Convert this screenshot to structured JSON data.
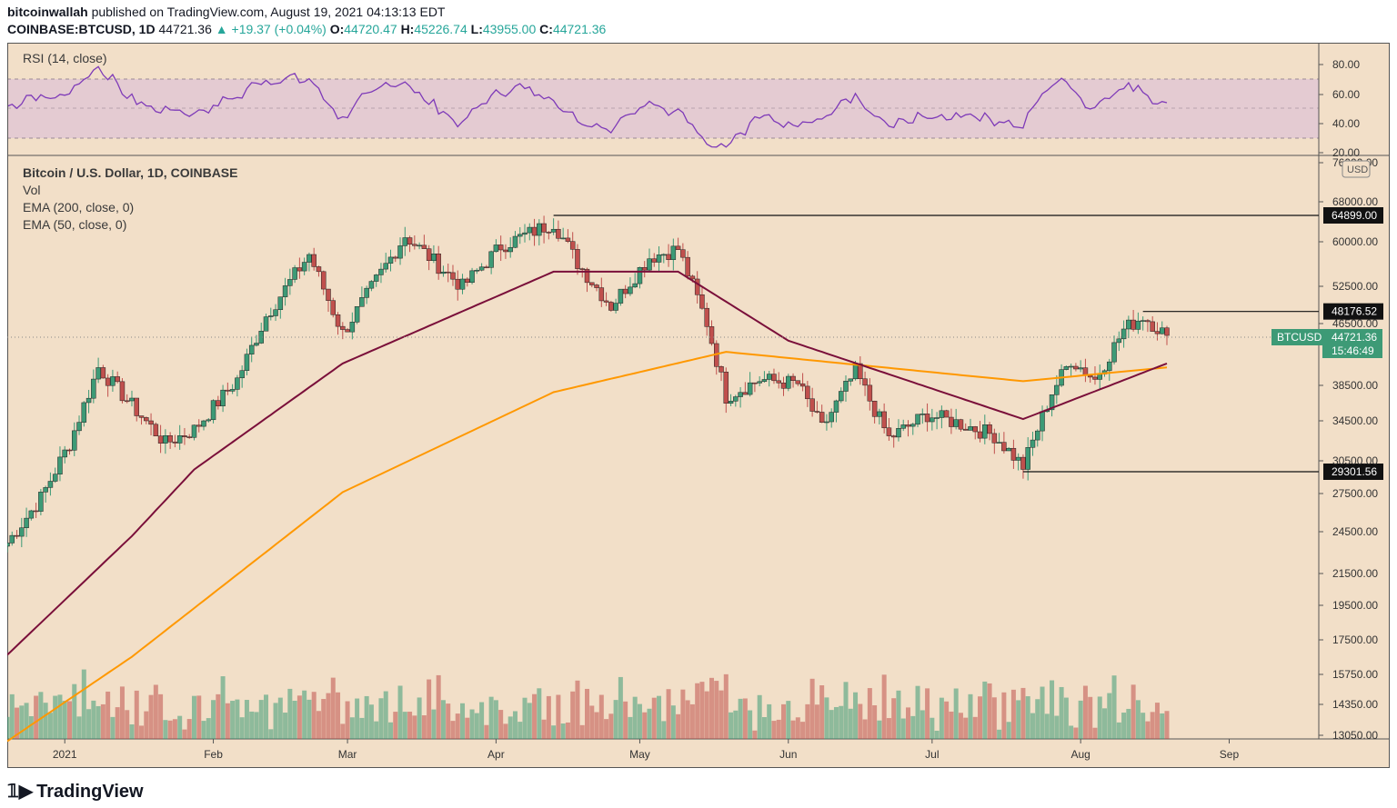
{
  "header": {
    "publisher": "bitcoinwallah",
    "published_text": "published on TradingView.com, August 19, 2021 04:13:13 EDT",
    "symbol": "COINBASE:BTCUSD, 1D",
    "last": "44721.36",
    "change": "▲ +19.37 (+0.04%)",
    "o_label": "O:",
    "o": "44720.47",
    "h_label": "H:",
    "h": "45226.74",
    "l_label": "L:",
    "l": "43955.00",
    "c_label": "C:",
    "c": "44721.36"
  },
  "rsi_pane": {
    "label": "RSI (14, close)",
    "ticks": [
      "80.00",
      "60.00",
      "40.00",
      "20.00"
    ]
  },
  "main_pane": {
    "title": "Bitcoin / U.S. Dollar, 1D, COINBASE",
    "legend": [
      "Vol",
      "EMA (200, close, 0)",
      "EMA (50, close, 0)"
    ],
    "currency_badge": "USD",
    "price_ticks": [
      "76000.00",
      "68000.00",
      "60000.00",
      "52500.00",
      "46500.00",
      "38500.00",
      "34500.00",
      "30500.00",
      "27500.00",
      "24500.00",
      "21500.00",
      "19500.00",
      "17500.00",
      "15750.00",
      "14350.00",
      "13050.00"
    ],
    "level_labels": [
      "64899.00",
      "48176.52",
      "29301.56"
    ],
    "last_price_label": "BTCUSD",
    "last_price": "44721.36",
    "countdown": "15:46:49"
  },
  "time_axis": [
    "2021",
    "Feb",
    "Mar",
    "Apr",
    "May",
    "Jun",
    "Jul",
    "Aug",
    "Sep"
  ],
  "colors": {
    "background": "#f2dfc8",
    "up": "#3d9a76",
    "down": "#c0504d",
    "ema50": "#7a0f3a",
    "ema200": "#ff9800",
    "rsi": "#7e3ab8",
    "rsi_band": "#e2c8d4"
  },
  "footer": {
    "brand": "TradingView"
  },
  "chart_data": {
    "type": "candlestick",
    "title": "Bitcoin / U.S. Dollar, 1D, COINBASE",
    "x_range": [
      "2020-12-20",
      "2021-08-19"
    ],
    "y_scale": "log",
    "levels": [
      64899.0,
      48176.52,
      29301.56
    ],
    "anchors": [
      {
        "date": "2020-12-20",
        "close": 23500
      },
      {
        "date": "2020-12-27",
        "close": 27000
      },
      {
        "date": "2021-01-02",
        "close": 32000
      },
      {
        "date": "2021-01-08",
        "close": 40500
      },
      {
        "date": "2021-01-15",
        "close": 36000
      },
      {
        "date": "2021-01-22",
        "close": 32000
      },
      {
        "date": "2021-01-28",
        "close": 33400
      },
      {
        "date": "2021-02-06",
        "close": 39000
      },
      {
        "date": "2021-02-12",
        "close": 47500
      },
      {
        "date": "2021-02-21",
        "close": 57500
      },
      {
        "date": "2021-02-28",
        "close": 45000
      },
      {
        "date": "2021-03-13",
        "close": 61000
      },
      {
        "date": "2021-03-25",
        "close": 52000
      },
      {
        "date": "2021-04-02",
        "close": 59000
      },
      {
        "date": "2021-04-13",
        "close": 63500
      },
      {
        "date": "2021-04-18",
        "close": 56000
      },
      {
        "date": "2021-04-25",
        "close": 49000
      },
      {
        "date": "2021-05-03",
        "close": 57000
      },
      {
        "date": "2021-05-09",
        "close": 58500
      },
      {
        "date": "2021-05-15",
        "close": 46500
      },
      {
        "date": "2021-05-19",
        "close": 37000
      },
      {
        "date": "2021-05-26",
        "close": 39000
      },
      {
        "date": "2021-06-03",
        "close": 38500
      },
      {
        "date": "2021-06-08",
        "close": 33500
      },
      {
        "date": "2021-06-15",
        "close": 40000
      },
      {
        "date": "2021-06-22",
        "close": 32500
      },
      {
        "date": "2021-06-30",
        "close": 35000
      },
      {
        "date": "2021-07-07",
        "close": 34000
      },
      {
        "date": "2021-07-14",
        "close": 32800
      },
      {
        "date": "2021-07-20",
        "close": 29800
      },
      {
        "date": "2021-07-26",
        "close": 37500
      },
      {
        "date": "2021-07-30",
        "close": 41500
      },
      {
        "date": "2021-08-04",
        "close": 39000
      },
      {
        "date": "2021-08-10",
        "close": 45500
      },
      {
        "date": "2021-08-14",
        "close": 47500
      },
      {
        "date": "2021-08-19",
        "close": 44721.36
      }
    ],
    "ema50": [
      {
        "date": "2020-12-20",
        "value": 16600
      },
      {
        "date": "2021-01-15",
        "value": 24000
      },
      {
        "date": "2021-01-28",
        "value": 29500
      },
      {
        "date": "2021-02-28",
        "value": 41000
      },
      {
        "date": "2021-04-13",
        "value": 54500
      },
      {
        "date": "2021-05-09",
        "value": 54500
      },
      {
        "date": "2021-06-01",
        "value": 44000
      },
      {
        "date": "2021-07-20",
        "value": 34500
      },
      {
        "date": "2021-08-19",
        "value": 41000
      }
    ],
    "ema200": [
      {
        "date": "2020-12-20",
        "value": 12700
      },
      {
        "date": "2021-01-15",
        "value": 16500
      },
      {
        "date": "2021-02-28",
        "value": 27500
      },
      {
        "date": "2021-04-13",
        "value": 37500
      },
      {
        "date": "2021-05-19",
        "value": 42500
      },
      {
        "date": "2021-07-20",
        "value": 38800
      },
      {
        "date": "2021-08-19",
        "value": 40500
      }
    ],
    "rsi_levels": [
      70,
      50,
      30
    ]
  }
}
